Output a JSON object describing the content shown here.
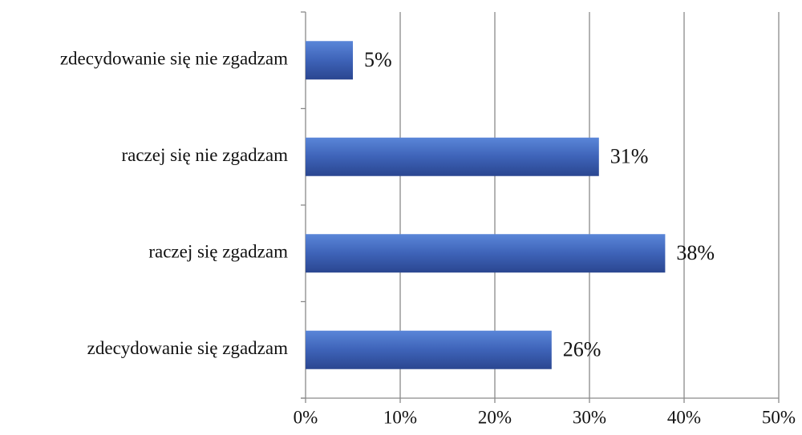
{
  "chart_data": {
    "type": "bar",
    "orientation": "horizontal",
    "categories": [
      "zdecydowanie się nie zgadzam",
      "raczej się nie zgadzam",
      "raczej się zgadzam",
      "zdecydowanie się zgadzam"
    ],
    "values": [
      5,
      31,
      38,
      26
    ],
    "value_labels": [
      "5%",
      "31%",
      "38%",
      "26%"
    ],
    "color": "#3a5fb5",
    "xlim": [
      0,
      50
    ],
    "xticks": [
      {
        "value": 0,
        "label": "0%"
      },
      {
        "value": 10,
        "label": "10%"
      },
      {
        "value": 20,
        "label": "20%"
      },
      {
        "value": 30,
        "label": "30%"
      },
      {
        "value": 40,
        "label": "40%"
      },
      {
        "value": 50,
        "label": "50%"
      }
    ],
    "grid": true
  }
}
